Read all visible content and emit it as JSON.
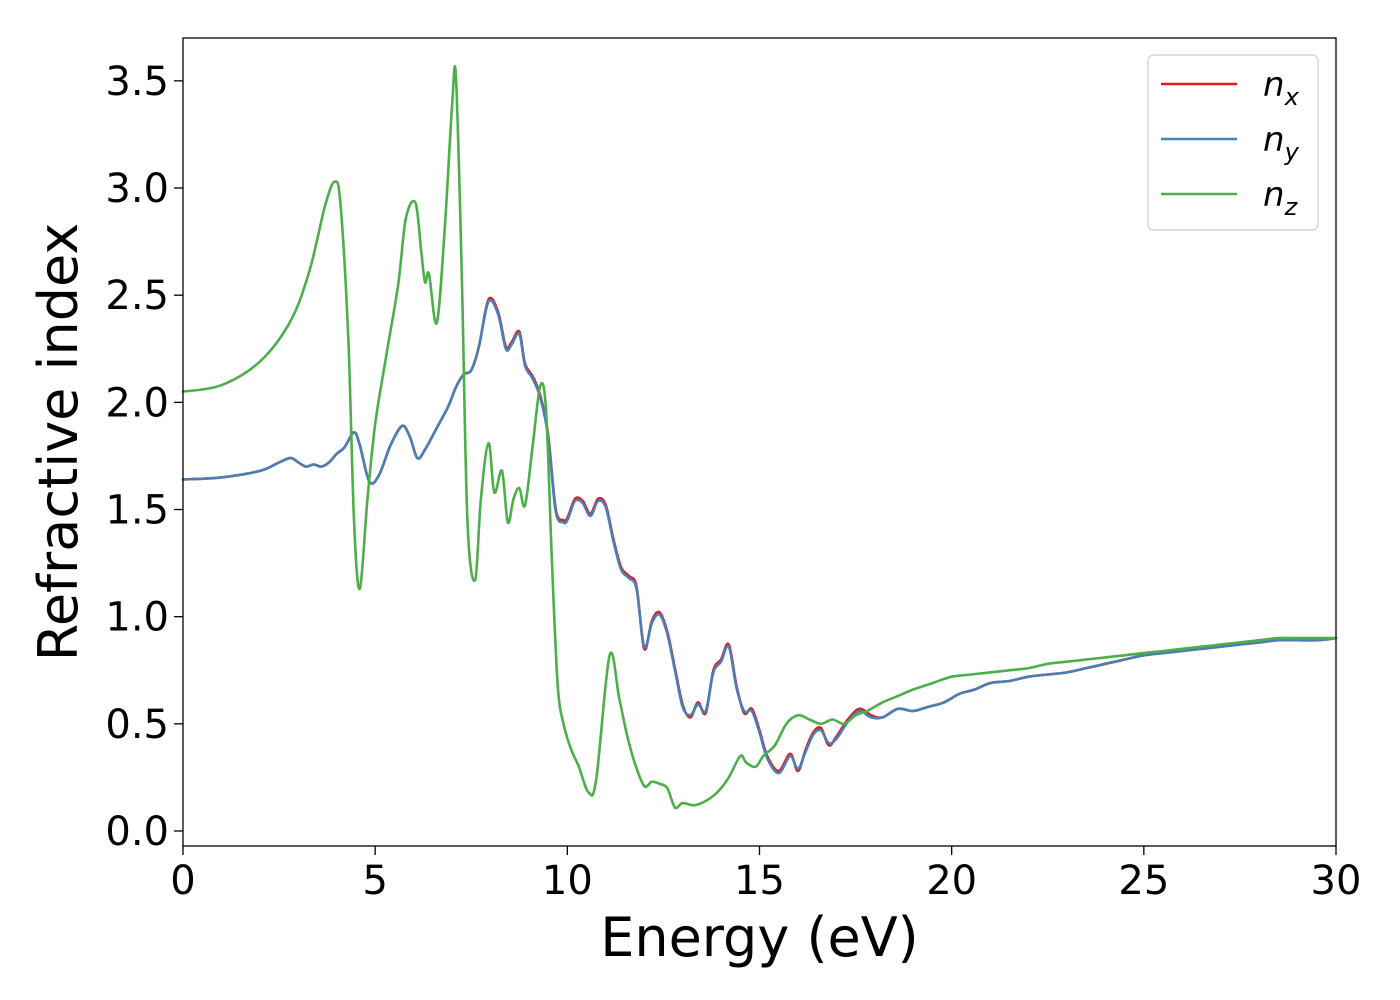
{
  "chart_data": {
    "type": "line",
    "title": "",
    "xlabel": "Energy (eV)",
    "ylabel": "Refractive index",
    "xlim": [
      0,
      30
    ],
    "ylim": [
      -0.07,
      3.7
    ],
    "xticks": [
      0,
      5,
      10,
      15,
      20,
      25,
      30
    ],
    "yticks": [
      0.0,
      0.5,
      1.0,
      1.5,
      2.0,
      2.5,
      3.0,
      3.5
    ],
    "xtick_labels": [
      "0",
      "5",
      "10",
      "15",
      "20",
      "25",
      "30"
    ],
    "ytick_labels": [
      "0.0",
      "0.5",
      "1.0",
      "1.5",
      "2.0",
      "2.5",
      "3.0",
      "3.5"
    ],
    "grid": false,
    "legend": "top-right",
    "series": [
      {
        "name": "n",
        "subscript": "x",
        "color": "#e41a1c",
        "x": [
          0,
          1,
          2,
          2.5,
          2.8,
          3.0,
          3.2,
          3.4,
          3.6,
          3.8,
          4.0,
          4.2,
          4.45,
          4.6,
          4.85,
          5.1,
          5.4,
          5.7,
          5.9,
          6.1,
          6.3,
          6.6,
          6.9,
          7.1,
          7.3,
          7.5,
          7.7,
          7.95,
          8.2,
          8.4,
          8.55,
          8.75,
          8.9,
          9.1,
          9.3,
          9.5,
          9.7,
          9.9,
          10.0,
          10.2,
          10.4,
          10.6,
          10.8,
          11.0,
          11.2,
          11.4,
          11.6,
          11.8,
          12.0,
          12.2,
          12.4,
          12.6,
          12.8,
          13.0,
          13.2,
          13.4,
          13.6,
          13.8,
          14.0,
          14.2,
          14.4,
          14.6,
          14.8,
          15.0,
          15.2,
          15.5,
          15.8,
          16.0,
          16.2,
          16.4,
          16.6,
          16.8,
          17.0,
          17.3,
          17.6,
          17.9,
          18.2,
          18.6,
          19.0,
          19.4,
          19.8,
          20.2,
          20.6,
          21.0,
          21.5,
          22.0,
          22.5,
          23.0,
          23.5,
          24.0,
          24.5,
          25.0,
          25.5,
          26.0,
          26.5,
          27.0,
          27.5,
          28.0,
          28.5,
          29.0,
          29.5,
          30.0
        ],
        "values": [
          1.64,
          1.65,
          1.68,
          1.72,
          1.74,
          1.72,
          1.7,
          1.71,
          1.7,
          1.72,
          1.76,
          1.79,
          1.86,
          1.8,
          1.63,
          1.66,
          1.8,
          1.89,
          1.84,
          1.74,
          1.78,
          1.88,
          1.98,
          2.07,
          2.13,
          2.15,
          2.26,
          2.48,
          2.42,
          2.26,
          2.28,
          2.33,
          2.18,
          2.12,
          2.03,
          1.85,
          1.5,
          1.45,
          1.46,
          1.55,
          1.54,
          1.48,
          1.55,
          1.52,
          1.36,
          1.23,
          1.19,
          1.14,
          0.85,
          0.98,
          1.02,
          0.93,
          0.76,
          0.59,
          0.53,
          0.6,
          0.55,
          0.75,
          0.8,
          0.87,
          0.68,
          0.55,
          0.57,
          0.47,
          0.35,
          0.28,
          0.36,
          0.28,
          0.38,
          0.46,
          0.48,
          0.4,
          0.44,
          0.52,
          0.57,
          0.54,
          0.53,
          0.57,
          0.56,
          0.58,
          0.6,
          0.64,
          0.66,
          0.69,
          0.7,
          0.72,
          0.73,
          0.74,
          0.76,
          0.78,
          0.8,
          0.82,
          0.83,
          0.84,
          0.85,
          0.86,
          0.87,
          0.88,
          0.89,
          0.89,
          0.89,
          0.9
        ]
      },
      {
        "name": "n",
        "subscript": "y",
        "color": "#4a7fb5",
        "x": [
          0,
          1,
          2,
          2.5,
          2.8,
          3.0,
          3.2,
          3.4,
          3.6,
          3.8,
          4.0,
          4.2,
          4.45,
          4.6,
          4.85,
          5.1,
          5.4,
          5.7,
          5.9,
          6.1,
          6.3,
          6.6,
          6.9,
          7.1,
          7.3,
          7.5,
          7.7,
          7.95,
          8.2,
          8.4,
          8.55,
          8.75,
          8.9,
          9.1,
          9.3,
          9.5,
          9.7,
          9.9,
          10.0,
          10.2,
          10.4,
          10.6,
          10.8,
          11.0,
          11.2,
          11.4,
          11.6,
          11.8,
          12.0,
          12.2,
          12.4,
          12.6,
          12.8,
          13.0,
          13.2,
          13.4,
          13.6,
          13.8,
          14.0,
          14.2,
          14.4,
          14.6,
          14.8,
          15.0,
          15.2,
          15.5,
          15.8,
          16.0,
          16.2,
          16.4,
          16.6,
          16.8,
          17.0,
          17.3,
          17.6,
          17.9,
          18.2,
          18.6,
          19.0,
          19.4,
          19.8,
          20.2,
          20.6,
          21.0,
          21.5,
          22.0,
          22.5,
          23.0,
          23.5,
          24.0,
          24.5,
          25.0,
          25.5,
          26.0,
          26.5,
          27.0,
          27.5,
          28.0,
          28.5,
          29.0,
          29.5,
          30.0
        ],
        "values": [
          1.64,
          1.65,
          1.68,
          1.72,
          1.74,
          1.72,
          1.7,
          1.71,
          1.7,
          1.72,
          1.76,
          1.79,
          1.86,
          1.8,
          1.63,
          1.66,
          1.8,
          1.89,
          1.84,
          1.74,
          1.78,
          1.88,
          1.98,
          2.07,
          2.13,
          2.15,
          2.26,
          2.47,
          2.41,
          2.25,
          2.27,
          2.32,
          2.17,
          2.11,
          2.02,
          1.84,
          1.49,
          1.44,
          1.45,
          1.54,
          1.53,
          1.47,
          1.54,
          1.51,
          1.35,
          1.22,
          1.18,
          1.13,
          0.86,
          0.97,
          1.01,
          0.92,
          0.75,
          0.58,
          0.54,
          0.59,
          0.56,
          0.74,
          0.79,
          0.86,
          0.67,
          0.56,
          0.56,
          0.46,
          0.34,
          0.27,
          0.35,
          0.29,
          0.37,
          0.45,
          0.47,
          0.41,
          0.43,
          0.51,
          0.56,
          0.53,
          0.53,
          0.57,
          0.56,
          0.58,
          0.6,
          0.64,
          0.66,
          0.69,
          0.7,
          0.72,
          0.73,
          0.74,
          0.76,
          0.78,
          0.8,
          0.82,
          0.83,
          0.84,
          0.85,
          0.86,
          0.87,
          0.88,
          0.89,
          0.89,
          0.89,
          0.9
        ]
      },
      {
        "name": "n",
        "subscript": "z",
        "color": "#4daf4a",
        "x": [
          0,
          1,
          2,
          2.8,
          3.3,
          3.7,
          3.95,
          4.1,
          4.3,
          4.45,
          4.6,
          4.8,
          5.0,
          5.3,
          5.6,
          5.8,
          6.05,
          6.2,
          6.3,
          6.4,
          6.6,
          6.8,
          7.0,
          7.1,
          7.25,
          7.4,
          7.6,
          7.75,
          7.95,
          8.1,
          8.3,
          8.45,
          8.6,
          8.75,
          8.9,
          9.1,
          9.3,
          9.45,
          9.6,
          9.75,
          9.9,
          10.1,
          10.3,
          10.55,
          10.75,
          11.1,
          11.35,
          11.55,
          11.75,
          12.0,
          12.2,
          12.4,
          12.6,
          12.8,
          13.0,
          13.3,
          13.6,
          13.9,
          14.2,
          14.5,
          14.65,
          14.9,
          15.1,
          15.4,
          15.7,
          16.0,
          16.3,
          16.6,
          16.9,
          17.2,
          17.5,
          17.8,
          18.2,
          18.6,
          19.0,
          19.5,
          20.0,
          20.5,
          21.0,
          21.5,
          22.0,
          22.5,
          23.0,
          23.5,
          24.0,
          24.5,
          25.0,
          25.5,
          26.0,
          26.5,
          27.0,
          27.5,
          28.0,
          28.5,
          29.0,
          29.5,
          30.0
        ],
        "values": [
          2.05,
          2.08,
          2.19,
          2.38,
          2.62,
          2.92,
          3.03,
          2.92,
          2.3,
          1.45,
          1.13,
          1.55,
          1.9,
          2.23,
          2.55,
          2.86,
          2.93,
          2.7,
          2.56,
          2.6,
          2.37,
          2.78,
          3.38,
          3.52,
          2.63,
          1.45,
          1.17,
          1.55,
          1.81,
          1.58,
          1.68,
          1.44,
          1.55,
          1.6,
          1.52,
          1.8,
          2.08,
          1.95,
          1.25,
          0.68,
          0.5,
          0.38,
          0.3,
          0.18,
          0.24,
          0.82,
          0.62,
          0.45,
          0.32,
          0.21,
          0.23,
          0.22,
          0.2,
          0.11,
          0.13,
          0.12,
          0.14,
          0.18,
          0.25,
          0.35,
          0.32,
          0.3,
          0.35,
          0.4,
          0.5,
          0.54,
          0.52,
          0.5,
          0.52,
          0.5,
          0.54,
          0.56,
          0.6,
          0.63,
          0.66,
          0.69,
          0.72,
          0.73,
          0.74,
          0.75,
          0.76,
          0.78,
          0.79,
          0.8,
          0.81,
          0.82,
          0.83,
          0.84,
          0.85,
          0.86,
          0.87,
          0.88,
          0.89,
          0.9,
          0.9,
          0.9,
          0.9
        ]
      }
    ]
  }
}
